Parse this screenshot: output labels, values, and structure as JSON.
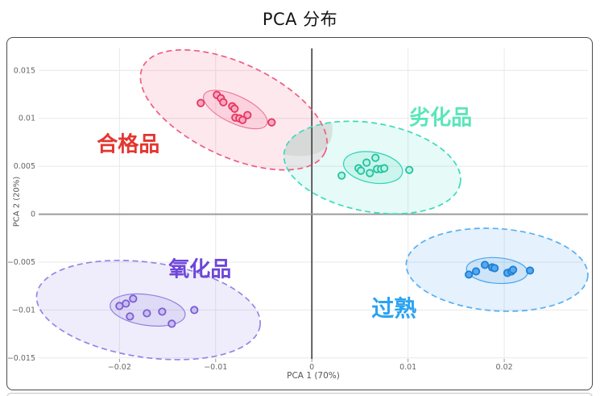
{
  "page": {
    "title": "PCA 分布"
  },
  "chart_data": {
    "type": "scatter",
    "title": "PCA 分布",
    "xlabel": "PCA 1 (70%)",
    "ylabel": "PCA 2 (20%)",
    "xlim": [
      -0.0284,
      0.0287
    ],
    "ylim": [
      -0.0151,
      0.0173
    ],
    "grid": true,
    "axis_line_colors": {
      "x_zero": "#9b9b9b",
      "y_zero": "#3d3d3d",
      "grid": "#e8e8e8"
    },
    "xticks": [
      {
        "v": -0.02,
        "label": "−0.02"
      },
      {
        "v": -0.01,
        "label": "−0.01"
      },
      {
        "v": 0,
        "label": "0"
      },
      {
        "v": 0.01,
        "label": "0.01"
      },
      {
        "v": 0.02,
        "label": "0.02"
      }
    ],
    "yticks": [
      {
        "v": 0.015,
        "label": "0.015"
      },
      {
        "v": 0.01,
        "label": "0.01"
      },
      {
        "v": 0.005,
        "label": "0.005"
      },
      {
        "v": 0,
        "label": "0"
      },
      {
        "v": -0.005,
        "label": "−0.005"
      },
      {
        "v": -0.01,
        "label": "−0.01"
      },
      {
        "v": -0.015,
        "label": "−0.015"
      }
    ],
    "overlap": {
      "clusters": [
        "合格品",
        "劣化品"
      ],
      "color": "#cdd0cc",
      "opacity": 0.6
    },
    "clusters": [
      {
        "id": "hegepin",
        "name": "合格品",
        "labelColor": "#e3362f",
        "edgeColor": "#ef5d7f",
        "fillColor": "rgba(242,99,142,0.15)",
        "innerFill": "rgba(242,99,142,0.16)",
        "innerEdge": "#ee7b98",
        "pointFill": "#f6aac2",
        "pointStroke": "#e8345f",
        "label": {
          "x": -0.01908,
          "y": 0.00723,
          "size": 26
        },
        "outer": {
          "cx": -0.00812,
          "cy": 0.01088,
          "rx": 0.01046,
          "ry": 0.00487,
          "rot": 25
        },
        "inner": {
          "cx": -0.00795,
          "cy": 0.01092,
          "rx": 0.0036,
          "ry": 0.00143,
          "rot": 25
        },
        "points": [
          [
            -0.01155,
            0.0116
          ],
          [
            -0.00987,
            0.01244
          ],
          [
            -0.00946,
            0.0121
          ],
          [
            -0.0092,
            0.01168
          ],
          [
            -0.00828,
            0.01126
          ],
          [
            -0.00803,
            0.01101
          ],
          [
            -0.00795,
            0.01008
          ],
          [
            -0.00753,
            0.01
          ],
          [
            -0.0072,
            0.00983
          ],
          [
            -0.00669,
            0.01034
          ],
          [
            -0.00418,
            0.00958
          ]
        ]
      },
      {
        "id": "liehuapin",
        "name": "劣化品",
        "labelColor": "#59e6b9",
        "edgeColor": "#3bdcbd",
        "fillColor": "rgba(62,220,191,0.13)",
        "innerFill": "rgba(62,220,191,0.15)",
        "innerEdge": "#2ed4b4",
        "pointFill": "#b9f2e3",
        "pointStroke": "#20c29f",
        "label": {
          "x": 0.01339,
          "y": 0.01,
          "size": 26
        },
        "outer": {
          "cx": 0.00628,
          "cy": 0.00487,
          "rx": 0.00929,
          "ry": 0.00462,
          "rot": 10
        },
        "inner": {
          "cx": 0.00636,
          "cy": 0.00487,
          "rx": 0.0031,
          "ry": 0.0016,
          "rot": 10
        },
        "points": [
          [
            0.0031,
            0.00403
          ],
          [
            0.00485,
            0.00479
          ],
          [
            0.0051,
            0.00454
          ],
          [
            0.00569,
            0.00538
          ],
          [
            0.00603,
            0.00429
          ],
          [
            0.00661,
            0.00588
          ],
          [
            0.00678,
            0.00471
          ],
          [
            0.0072,
            0.00471
          ],
          [
            0.00753,
            0.00479
          ],
          [
            0.01013,
            0.00462
          ]
        ]
      },
      {
        "id": "yanghuapin",
        "name": "氧化品",
        "labelColor": "#6e46d9",
        "edgeColor": "#9486e6",
        "fillColor": "rgba(126,104,222,0.12)",
        "innerFill": "rgba(126,104,222,0.14)",
        "innerEdge": "#9180e0",
        "pointFill": "#cabdf2",
        "pointStroke": "#7a5ed2",
        "label": {
          "x": -0.01163,
          "y": -0.0058,
          "size": 26
        },
        "outer": {
          "cx": -0.01699,
          "cy": -0.01,
          "rx": 0.01172,
          "ry": 0.00496,
          "rot": 8
        },
        "inner": {
          "cx": -0.01707,
          "cy": -0.01,
          "rx": 0.00393,
          "ry": 0.0016,
          "rot": 8
        },
        "points": [
          [
            -0.02,
            -0.00958
          ],
          [
            -0.01933,
            -0.00933
          ],
          [
            -0.01858,
            -0.00882
          ],
          [
            -0.01891,
            -0.01067
          ],
          [
            -0.01715,
            -0.01034
          ],
          [
            -0.01556,
            -0.01017
          ],
          [
            -0.01456,
            -0.01143
          ],
          [
            -0.01222,
            -0.01
          ]
        ]
      },
      {
        "id": "guoshu",
        "name": "过熟",
        "labelColor": "#2aa3f1",
        "edgeColor": "#58aff2",
        "fillColor": "rgba(82,162,236,0.15)",
        "innerFill": "rgba(82,162,236,0.16)",
        "innerEdge": "#4aa4ee",
        "pointFill": "#57a8ef",
        "pointStroke": "#1d7fd6",
        "label": {
          "x": 0.00854,
          "y": -0.00983,
          "size": 28
        },
        "outer": {
          "cx": 0.01925,
          "cy": -0.0058,
          "rx": 0.00946,
          "ry": 0.00429,
          "rot": 4
        },
        "inner": {
          "cx": 0.01925,
          "cy": -0.00588,
          "rx": 0.00318,
          "ry": 0.00134,
          "rot": 4
        },
        "points": [
          [
            0.01632,
            -0.0063
          ],
          [
            0.01707,
            -0.00597
          ],
          [
            0.01799,
            -0.00529
          ],
          [
            0.01874,
            -0.00555
          ],
          [
            0.019,
            -0.00563
          ],
          [
            0.02033,
            -0.00613
          ],
          [
            0.02075,
            -0.00597
          ],
          [
            0.02092,
            -0.0058
          ],
          [
            0.02268,
            -0.00588
          ]
        ]
      }
    ]
  }
}
